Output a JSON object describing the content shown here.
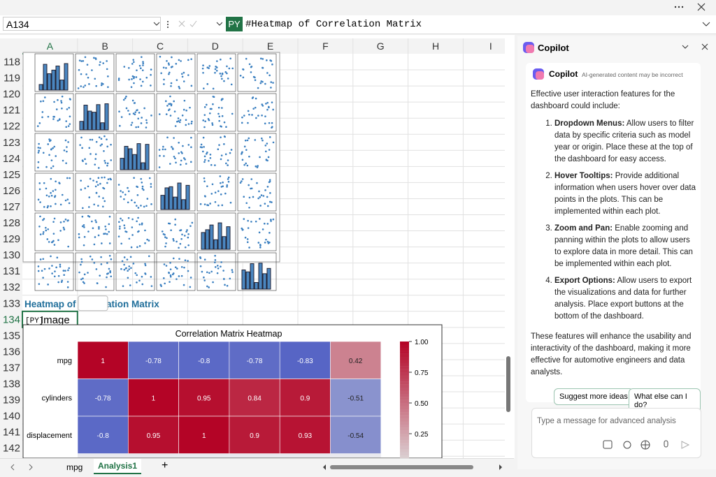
{
  "formula_bar": {
    "name_box": "A134",
    "prefix": "PY",
    "formula": "#Heatmap of Correlation Matrix"
  },
  "columns": [
    "A",
    "B",
    "C",
    "D",
    "E",
    "F",
    "G",
    "H",
    "I"
  ],
  "rows": [
    "118",
    "119",
    "120",
    "121",
    "122",
    "123",
    "124",
    "125",
    "126",
    "127",
    "128",
    "129",
    "130",
    "131",
    "132",
    "133",
    "134",
    "135",
    "136",
    "137",
    "138",
    "139",
    "140",
    "141",
    "142"
  ],
  "cells": {
    "heading": "Heatmap of Correlation Matrix",
    "cell_prefix": "[PY]",
    "cell_value": "Image"
  },
  "heatmap": {
    "title": "Correlation Matrix Heatmap",
    "row_labels": [
      "mpg",
      "cylinders",
      "displacement"
    ],
    "values": [
      [
        1,
        -0.78,
        -0.8,
        -0.78,
        -0.83,
        0.42
      ],
      [
        -0.78,
        1,
        0.95,
        0.84,
        0.9,
        -0.51
      ],
      [
        -0.8,
        0.95,
        1,
        0.9,
        0.93,
        -0.54
      ]
    ],
    "colorbar_ticks": [
      {
        "value": 1,
        "label": "1.00"
      },
      {
        "value": 0.75,
        "label": "0.75"
      },
      {
        "value": 0.5,
        "label": "0.50"
      },
      {
        "value": 0.25,
        "label": "0.25"
      }
    ]
  },
  "sheet_tabs": [
    "mpg",
    "Analysis1"
  ],
  "copilot": {
    "pane_title": "Copilot",
    "card_title": "Copilot",
    "disclaimer": "AI-generated content may be incorrect",
    "intro": "Effective user interaction features for the dashboard could include:",
    "items": [
      {
        "title": "Dropdown Menus:",
        "text": "Allow users to filter data by specific criteria such as model year or origin. Place these at the top of the dashboard for easy access."
      },
      {
        "title": "Hover Tooltips:",
        "text": "Provide additional information when users hover over data points in the plots. This can be implemented within each plot."
      },
      {
        "title": "Zoom and Pan:",
        "text": "Enable zooming and panning within the plots to allow users to explore data in more detail. This can be implemented within each plot."
      },
      {
        "title": "Export Options:",
        "text": "Allow users to export the visualizations and data for further analysis. Place export buttons at the bottom of the dashboard."
      }
    ],
    "conclusion": "These features will enhance the usability and interactivity of the dashboard, making it more effective for automotive engineers and data analysts.",
    "suggestions": [
      "Suggest more ideas",
      "What else can I do?"
    ],
    "placeholder": "Type a message for advanced analysis"
  }
}
